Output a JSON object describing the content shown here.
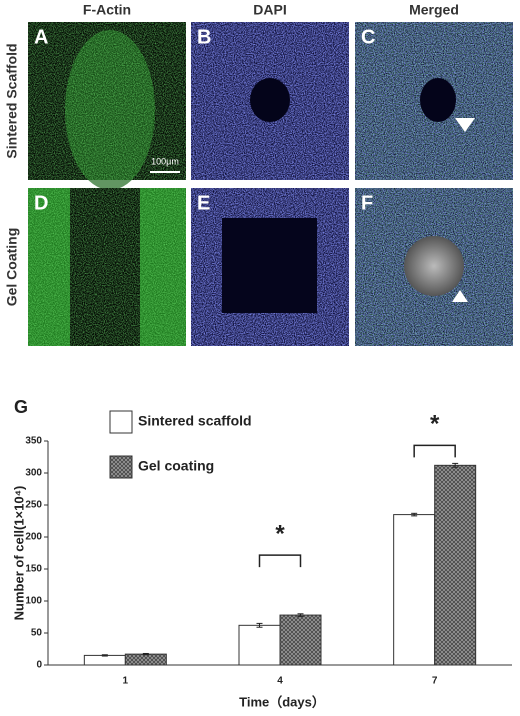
{
  "figure": {
    "columns": [
      "F-Actin",
      "DAPI",
      "Merged"
    ],
    "rows": [
      "Sintered Scaffold",
      "Gel Coating"
    ],
    "panels": [
      "A",
      "B",
      "C",
      "D",
      "E",
      "F"
    ],
    "scale_bar": "100μm"
  },
  "chart_data": {
    "type": "bar",
    "panel": "G",
    "ylabel": "Number of cell(1×10⁴)",
    "xlabel": "Time（days）",
    "categories": [
      "1",
      "4",
      "7"
    ],
    "series": [
      {
        "name": "Sintered scaffold",
        "color": "#ffffff",
        "values": [
          15,
          62,
          235
        ],
        "errors": [
          1,
          3,
          2
        ]
      },
      {
        "name": "Gel coating",
        "color": "#8a8a8a",
        "pattern": "crosshatch",
        "values": [
          17,
          78,
          312
        ],
        "errors": [
          1,
          2,
          3
        ]
      }
    ],
    "ylim": [
      0,
      350
    ],
    "yticks": [
      0,
      50,
      100,
      150,
      200,
      250,
      300,
      350
    ],
    "annotations": [
      "*",
      "*"
    ]
  }
}
